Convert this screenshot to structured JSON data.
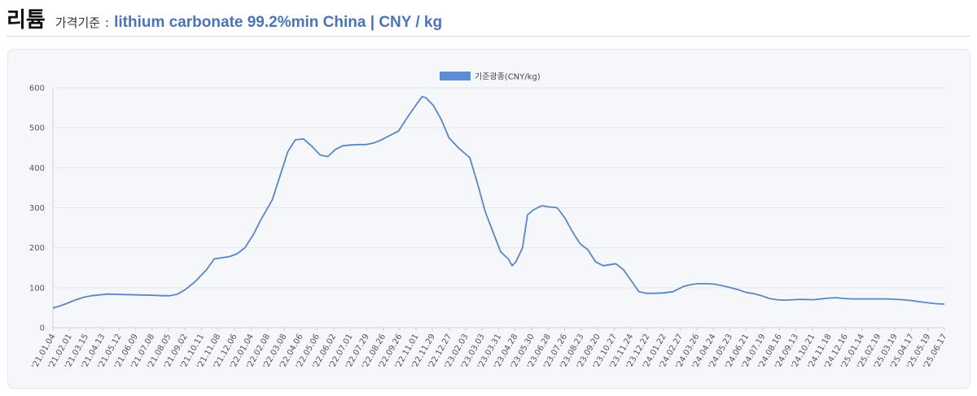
{
  "header": {
    "title": "리튬",
    "label": "가격기준",
    "separator": ":",
    "product": "lithium carbonate 99.2%min China | CNY / kg"
  },
  "colors": {
    "series": "#5b86c5",
    "legend_swatch": "#5b8ed6",
    "grid": "#e4e6ea",
    "title_accent": "#4a73b8"
  },
  "chart_data": {
    "type": "line",
    "title": "",
    "xlabel": "",
    "ylabel": "",
    "ylim": [
      0,
      600
    ],
    "yticks": [
      0,
      100,
      200,
      300,
      400,
      500,
      600
    ],
    "grid": true,
    "legend_position": "top-center",
    "x_tick_labels": [
      "'21.01.04",
      "'21.02.01",
      "'21.03.15",
      "'21.04.13",
      "'21.05.12",
      "'21.06.09",
      "'21.07.08",
      "'21.08.05",
      "'21.09.02",
      "'21.10.11",
      "'21.11.08",
      "'21.12.06",
      "'22.01.04",
      "'22.02.08",
      "'22.03.08",
      "'22.04.06",
      "'22.05.06",
      "'22.06.02",
      "'22.07.01",
      "'22.07.29",
      "'22.08.26",
      "'22.09.26",
      "'22.11.01",
      "'22.11.29",
      "'22.12.27",
      "'23.02.03",
      "'23.03.03",
      "'23.03.31",
      "'23.04.28",
      "'23.05.30",
      "'23.06.28",
      "'23.07.26",
      "'23.08.23",
      "'23.09.20",
      "'23.10.27",
      "'23.11.24",
      "'23.12.22",
      "'24.01.22",
      "'24.02.27",
      "'24.03.26",
      "'24.04.24",
      "'24.05.23",
      "'24.06.21",
      "'24.07.19",
      "'24.08.16",
      "'24.09.13",
      "'24.10.21",
      "'24.11.18",
      "'24.12.16",
      "'25.01.14",
      "'25.02.19",
      "'25.03.19",
      "'25.04.17",
      "'25.05.19",
      "'25.06.17"
    ],
    "series": [
      {
        "name": "기준광종(CNY/kg)",
        "x": [
          "2021-01-04",
          "2021-01-18",
          "2021-02-01",
          "2021-02-15",
          "2021-03-01",
          "2021-03-15",
          "2021-04-13",
          "2021-05-12",
          "2021-06-09",
          "2021-07-08",
          "2021-07-22",
          "2021-08-05",
          "2021-08-19",
          "2021-09-02",
          "2021-09-20",
          "2021-10-11",
          "2021-10-25",
          "2021-11-08",
          "2021-11-22",
          "2021-12-06",
          "2021-12-20",
          "2022-01-04",
          "2022-01-18",
          "2022-02-08",
          "2022-02-22",
          "2022-03-08",
          "2022-03-22",
          "2022-04-06",
          "2022-04-20",
          "2022-05-06",
          "2022-05-20",
          "2022-06-02",
          "2022-06-16",
          "2022-07-01",
          "2022-07-15",
          "2022-07-29",
          "2022-08-12",
          "2022-08-26",
          "2022-09-09",
          "2022-09-26",
          "2022-10-14",
          "2022-11-01",
          "2022-11-08",
          "2022-11-15",
          "2022-11-29",
          "2022-12-13",
          "2022-12-27",
          "2023-01-13",
          "2023-02-03",
          "2023-02-17",
          "2023-03-03",
          "2023-03-17",
          "2023-03-31",
          "2023-04-14",
          "2023-04-21",
          "2023-04-28",
          "2023-05-10",
          "2023-05-19",
          "2023-05-30",
          "2023-06-14",
          "2023-06-28",
          "2023-07-12",
          "2023-07-26",
          "2023-08-09",
          "2023-08-23",
          "2023-09-06",
          "2023-09-20",
          "2023-10-04",
          "2023-10-27",
          "2023-11-10",
          "2023-11-24",
          "2023-12-08",
          "2023-12-22",
          "2024-01-08",
          "2024-01-22",
          "2024-02-08",
          "2024-02-27",
          "2024-03-12",
          "2024-03-26",
          "2024-04-10",
          "2024-04-24",
          "2024-05-08",
          "2024-05-23",
          "2024-06-06",
          "2024-06-21",
          "2024-07-05",
          "2024-07-19",
          "2024-08-02",
          "2024-08-16",
          "2024-08-30",
          "2024-09-13",
          "2024-09-27",
          "2024-10-21",
          "2024-11-04",
          "2024-11-18",
          "2024-12-02",
          "2024-12-16",
          "2024-12-30",
          "2025-01-14",
          "2025-02-05",
          "2025-02-19",
          "2025-03-05",
          "2025-03-19",
          "2025-04-02",
          "2025-04-17",
          "2025-05-02",
          "2025-05-19",
          "2025-06-02",
          "2025-06-17"
        ],
        "values": [
          49,
          55,
          62,
          70,
          76,
          80,
          84,
          83,
          82,
          81,
          80,
          80,
          84,
          95,
          115,
          145,
          172,
          175,
          178,
          185,
          200,
          232,
          270,
          320,
          380,
          440,
          470,
          472,
          455,
          432,
          428,
          445,
          455,
          457,
          458,
          458,
          462,
          470,
          480,
          492,
          530,
          565,
          578,
          575,
          555,
          520,
          475,
          450,
          425,
          360,
          290,
          240,
          190,
          172,
          155,
          165,
          200,
          282,
          295,
          305,
          302,
          300,
          275,
          240,
          210,
          195,
          165,
          155,
          160,
          145,
          118,
          90,
          86,
          86,
          87,
          90,
          103,
          108,
          110,
          110,
          109,
          105,
          100,
          95,
          88,
          85,
          80,
          73,
          70,
          69,
          70,
          71,
          70,
          72,
          74,
          75,
          73,
          72,
          72,
          72,
          72,
          72,
          71,
          70,
          68,
          65,
          62,
          60,
          59
        ]
      }
    ]
  }
}
